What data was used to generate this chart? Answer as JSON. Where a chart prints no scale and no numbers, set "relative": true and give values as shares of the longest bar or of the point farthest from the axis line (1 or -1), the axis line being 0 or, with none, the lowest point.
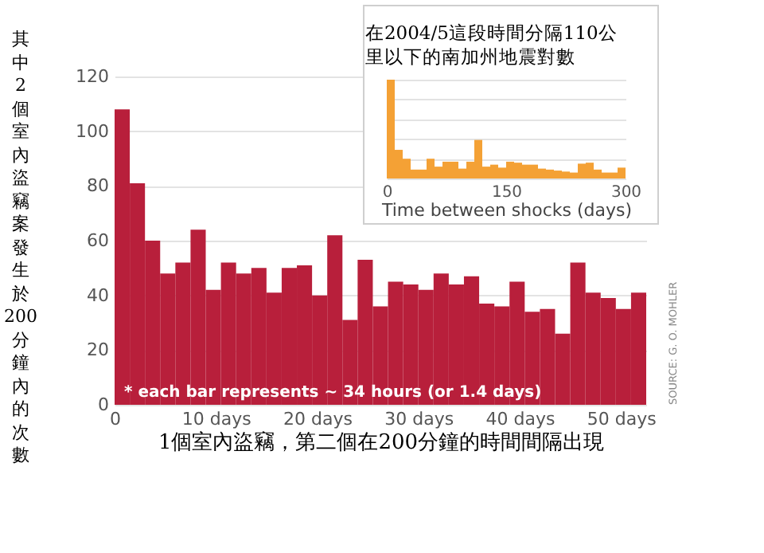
{
  "chart_data": [
    {
      "type": "histogram",
      "ylabel": "其中2個室內盜竊案發生於200分鐘內的次數",
      "xlabel": "1個室內盜竊，第二個在200分鐘的時間間隔出現",
      "bins": [
        0,
        1.5,
        3,
        4.5,
        6,
        7.5,
        9,
        10.5,
        12,
        13.5,
        15,
        16.5,
        18,
        19.5,
        21,
        22.5,
        24,
        25.5,
        27,
        28.5,
        30,
        31.5,
        33,
        34.5,
        36,
        37.5,
        39,
        40.5,
        42,
        43.5,
        45,
        46.5,
        48,
        49.5,
        51,
        52.5
      ],
      "values": [
        108,
        81,
        60,
        48,
        52,
        64,
        42,
        52,
        48,
        50,
        41,
        50,
        51,
        40,
        62,
        31,
        53,
        36,
        45,
        44,
        42,
        48,
        44,
        47,
        37,
        36,
        45,
        34,
        35,
        26,
        52,
        41,
        39,
        35,
        41
      ],
      "color": "#b81f3b",
      "xlim": [
        0,
        52.5
      ],
      "xticks": [
        0,
        {
          "value": 10,
          "label": "10 days"
        },
        {
          "value": 20,
          "label": "20 days"
        },
        {
          "value": 30,
          "label": "30 days"
        },
        {
          "value": 40,
          "label": "40 days"
        },
        {
          "value": 50,
          "label": "50 days"
        }
      ],
      "ylim": [
        0,
        120
      ],
      "yticks": [
        0,
        20,
        40,
        60,
        80,
        100,
        120
      ],
      "grid": "y",
      "annotations": [
        "* each bar represents ~ 34 hours (or 1.4 days)",
        "SOURCE: G. O. MOHLER"
      ]
    },
    {
      "type": "bar",
      "title": "在2004/5這段時間分隔110公里以下的南加州地震對數",
      "xlabel": "Time between shocks (days)",
      "relative": true,
      "x": [
        5,
        15,
        25,
        35,
        45,
        55,
        65,
        75,
        85,
        95,
        105,
        115,
        125,
        135,
        145,
        155,
        165,
        175,
        185,
        195,
        205,
        215,
        225,
        235,
        245,
        255,
        265,
        275,
        285,
        295
      ],
      "values": [
        1,
        0.29,
        0.2,
        0.09,
        0.09,
        0.2,
        0.12,
        0.17,
        0.17,
        0.1,
        0.17,
        0.39,
        0.12,
        0.14,
        0.11,
        0.17,
        0.16,
        0.14,
        0.14,
        0.1,
        0.09,
        0.08,
        0.07,
        0.06,
        0.15,
        0.16,
        0.09,
        0.06,
        0.06,
        0.11
      ],
      "color": "#f4a135",
      "xlim": [
        0,
        300
      ],
      "xticks": [
        0,
        150,
        300
      ],
      "grid": "y",
      "tick_labels": "x"
    }
  ]
}
